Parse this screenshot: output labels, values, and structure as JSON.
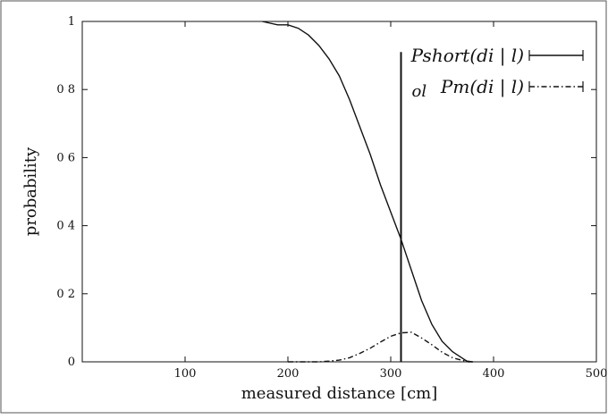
{
  "chart_data": {
    "type": "line",
    "title": "",
    "xlabel": "measured distance [cm]",
    "ylabel": "probability",
    "xlim": [
      0,
      500
    ],
    "ylim": [
      0,
      1
    ],
    "x_ticks": [
      100,
      200,
      300,
      400,
      500
    ],
    "x_tick_labels": [
      "100",
      "200",
      "300",
      "400",
      "500"
    ],
    "y_ticks": [
      0,
      0.2,
      0.4,
      0.6,
      0.8,
      1
    ],
    "y_tick_labels": [
      "0",
      "0 2",
      "0 4",
      "0 6",
      "0 8",
      "1"
    ],
    "grid": false,
    "legend_position": "top-right",
    "series": [
      {
        "name": "P_short(d_i | l)",
        "legend_label": "Pshort(di | l)",
        "style": "solid",
        "color": "#111111",
        "x": [
          175,
          190,
          200,
          210,
          220,
          230,
          240,
          250,
          260,
          270,
          280,
          290,
          300,
          310,
          320,
          330,
          340,
          350,
          360,
          370,
          375,
          380
        ],
        "y": [
          1.0,
          0.99,
          0.99,
          0.98,
          0.96,
          0.93,
          0.89,
          0.84,
          0.77,
          0.69,
          0.61,
          0.52,
          0.44,
          0.36,
          0.27,
          0.18,
          0.11,
          0.06,
          0.03,
          0.01,
          0.0,
          0.0
        ]
      },
      {
        "name": "P_m(d_i | l)",
        "legend_label": "Pm(di | l)",
        "style": "dash-dot",
        "color": "#111111",
        "x": [
          200,
          210,
          220,
          230,
          240,
          250,
          260,
          270,
          280,
          290,
          300,
          310,
          320,
          330,
          340,
          350,
          360,
          370,
          380
        ],
        "y": [
          0.0,
          0.0,
          0.0,
          0.0,
          0.002,
          0.005,
          0.012,
          0.025,
          0.04,
          0.058,
          0.075,
          0.085,
          0.087,
          0.07,
          0.05,
          0.028,
          0.012,
          0.004,
          0.0
        ]
      }
    ],
    "annotations": [
      {
        "type": "vline",
        "x": 310,
        "y_from": 0,
        "y_to": 0.91,
        "label": "o_l",
        "label_text": "ol"
      }
    ]
  }
}
